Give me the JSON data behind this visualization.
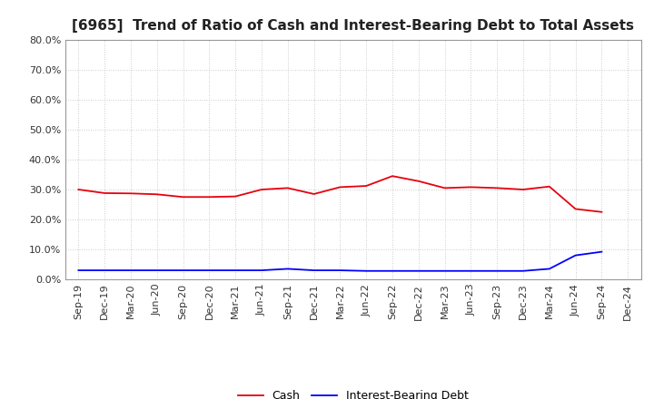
{
  "title": "[6965]  Trend of Ratio of Cash and Interest-Bearing Debt to Total Assets",
  "x_labels": [
    "Sep-19",
    "Dec-19",
    "Mar-20",
    "Jun-20",
    "Sep-20",
    "Dec-20",
    "Mar-21",
    "Jun-21",
    "Sep-21",
    "Dec-21",
    "Mar-22",
    "Jun-22",
    "Sep-22",
    "Dec-22",
    "Mar-23",
    "Jun-23",
    "Sep-23",
    "Dec-23",
    "Mar-24",
    "Jun-24",
    "Sep-24",
    "Dec-24"
  ],
  "cash": [
    0.3,
    0.288,
    0.287,
    0.284,
    0.275,
    0.275,
    0.277,
    0.3,
    0.305,
    0.285,
    0.308,
    0.312,
    0.345,
    0.328,
    0.305,
    0.308,
    0.305,
    0.3,
    0.31,
    0.235,
    0.225,
    null
  ],
  "interest_bearing_debt": [
    0.03,
    0.03,
    0.03,
    0.03,
    0.03,
    0.03,
    0.03,
    0.03,
    0.035,
    0.03,
    0.03,
    0.028,
    0.028,
    0.028,
    0.028,
    0.028,
    0.028,
    0.028,
    0.035,
    0.08,
    0.092,
    null
  ],
  "cash_color": "#e8000d",
  "debt_color": "#0000ff",
  "background_color": "#ffffff",
  "grid_color": "#aaaaaa",
  "ylim": [
    0.0,
    0.8
  ],
  "yticks": [
    0.0,
    0.1,
    0.2,
    0.3,
    0.4,
    0.5,
    0.6,
    0.7,
    0.8
  ],
  "title_fontsize": 11,
  "tick_fontsize": 8,
  "legend_fontsize": 9
}
